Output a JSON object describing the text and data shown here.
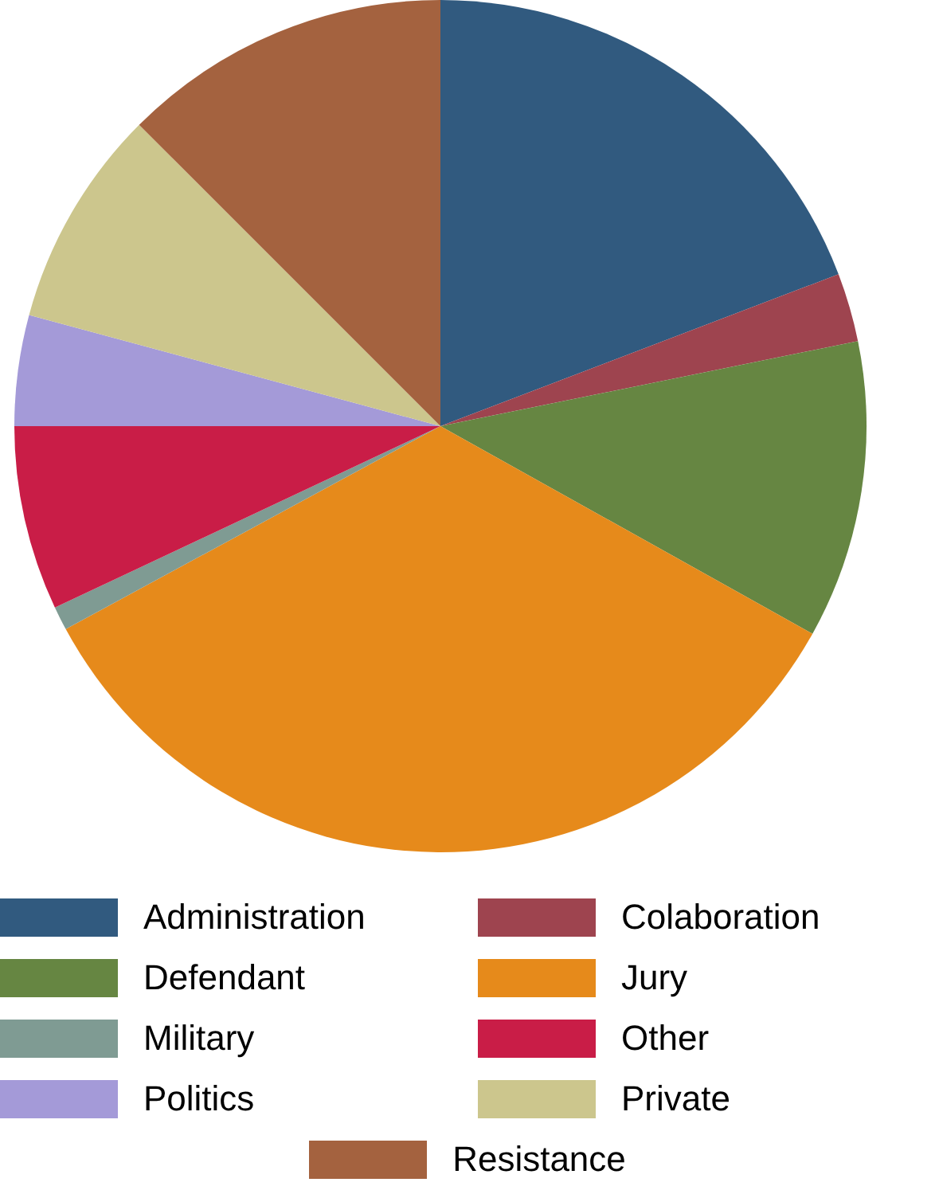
{
  "chart_data": {
    "type": "pie",
    "categories": [
      "Administration",
      "Colaboration",
      "Defendant",
      "Jury",
      "Military",
      "Other",
      "Politics",
      "Private",
      "Resistance"
    ],
    "values": [
      19.2,
      2.6,
      11.3,
      34.0,
      0.9,
      7.0,
      4.2,
      8.3,
      12.5
    ],
    "colors": [
      "#315a7f",
      "#9e444f",
      "#668642",
      "#e68a1b",
      "#7f9b93",
      "#c91d47",
      "#a49ad8",
      "#ccc68d",
      "#a4623f"
    ],
    "legend": "bottom"
  }
}
